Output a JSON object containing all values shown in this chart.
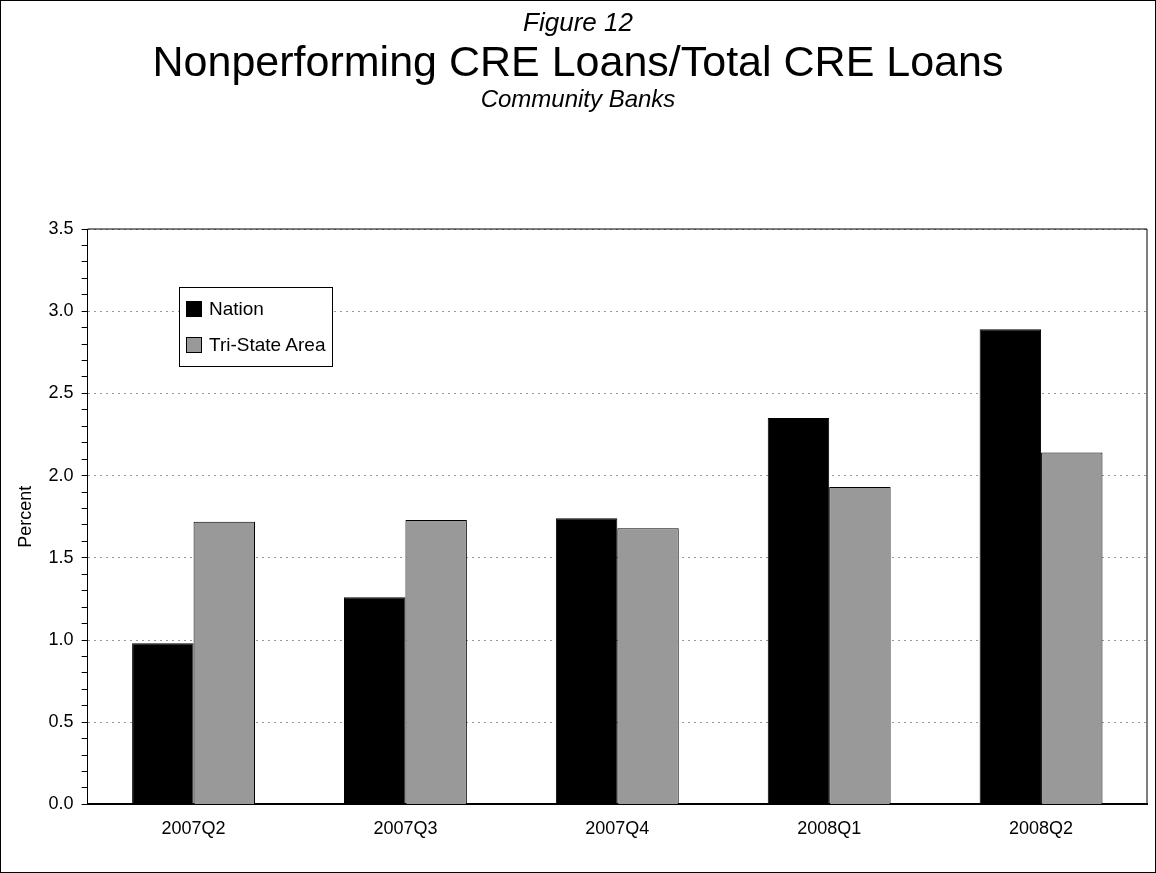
{
  "chart_data": {
    "type": "bar",
    "title": "Nonperforming CRE Loans/Total CRE Loans",
    "subtitle": "Community Banks",
    "annotations": [
      "Figure 12"
    ],
    "ylabel": "Percent",
    "categories": [
      "2007Q2",
      "2007Q3",
      "2007Q4",
      "2008Q1",
      "2008Q2"
    ],
    "series": [
      {
        "name": "Nation",
        "color": "#000000",
        "values": [
          0.98,
          1.26,
          1.74,
          2.35,
          2.89
        ]
      },
      {
        "name": "Tri-State Area",
        "color": "#999999",
        "values": [
          1.72,
          1.73,
          1.68,
          1.93,
          2.14
        ]
      }
    ],
    "ylim": [
      0,
      3.5
    ],
    "yticks": [
      {
        "value": 0,
        "label": "0.0"
      },
      {
        "value": 0.1,
        "label": null
      },
      {
        "value": 0.2,
        "label": null
      },
      {
        "value": 0.3,
        "label": null
      },
      {
        "value": 0.4,
        "label": null
      },
      {
        "value": 0.5,
        "label": "0.5"
      },
      {
        "value": 0.6,
        "label": null
      },
      {
        "value": 0.7,
        "label": null
      },
      {
        "value": 0.8,
        "label": null
      },
      {
        "value": 0.9,
        "label": null
      },
      {
        "value": 1,
        "label": "1.0"
      },
      {
        "value": 1.1,
        "label": null
      },
      {
        "value": 1.2,
        "label": null
      },
      {
        "value": 1.3,
        "label": null
      },
      {
        "value": 1.4,
        "label": null
      },
      {
        "value": 1.5,
        "label": "1.5"
      },
      {
        "value": 1.6,
        "label": null
      },
      {
        "value": 1.7,
        "label": null
      },
      {
        "value": 1.8,
        "label": null
      },
      {
        "value": 1.9,
        "label": null
      },
      {
        "value": 2,
        "label": "2.0"
      },
      {
        "value": 2.1,
        "label": null
      },
      {
        "value": 2.2,
        "label": null
      },
      {
        "value": 2.3,
        "label": null
      },
      {
        "value": 2.4,
        "label": null
      },
      {
        "value": 2.5,
        "label": "2.5"
      },
      {
        "value": 2.6,
        "label": null
      },
      {
        "value": 2.7,
        "label": null
      },
      {
        "value": 2.8,
        "label": null
      },
      {
        "value": 2.9,
        "label": null
      },
      {
        "value": 3,
        "label": "3.0"
      },
      {
        "value": 3.1,
        "label": null
      },
      {
        "value": 3.2,
        "label": null
      },
      {
        "value": 3.3,
        "label": null
      },
      {
        "value": 3.4,
        "label": null
      },
      {
        "value": 3.5,
        "label": "3.5"
      }
    ],
    "grid": "y",
    "legend": "top left"
  }
}
